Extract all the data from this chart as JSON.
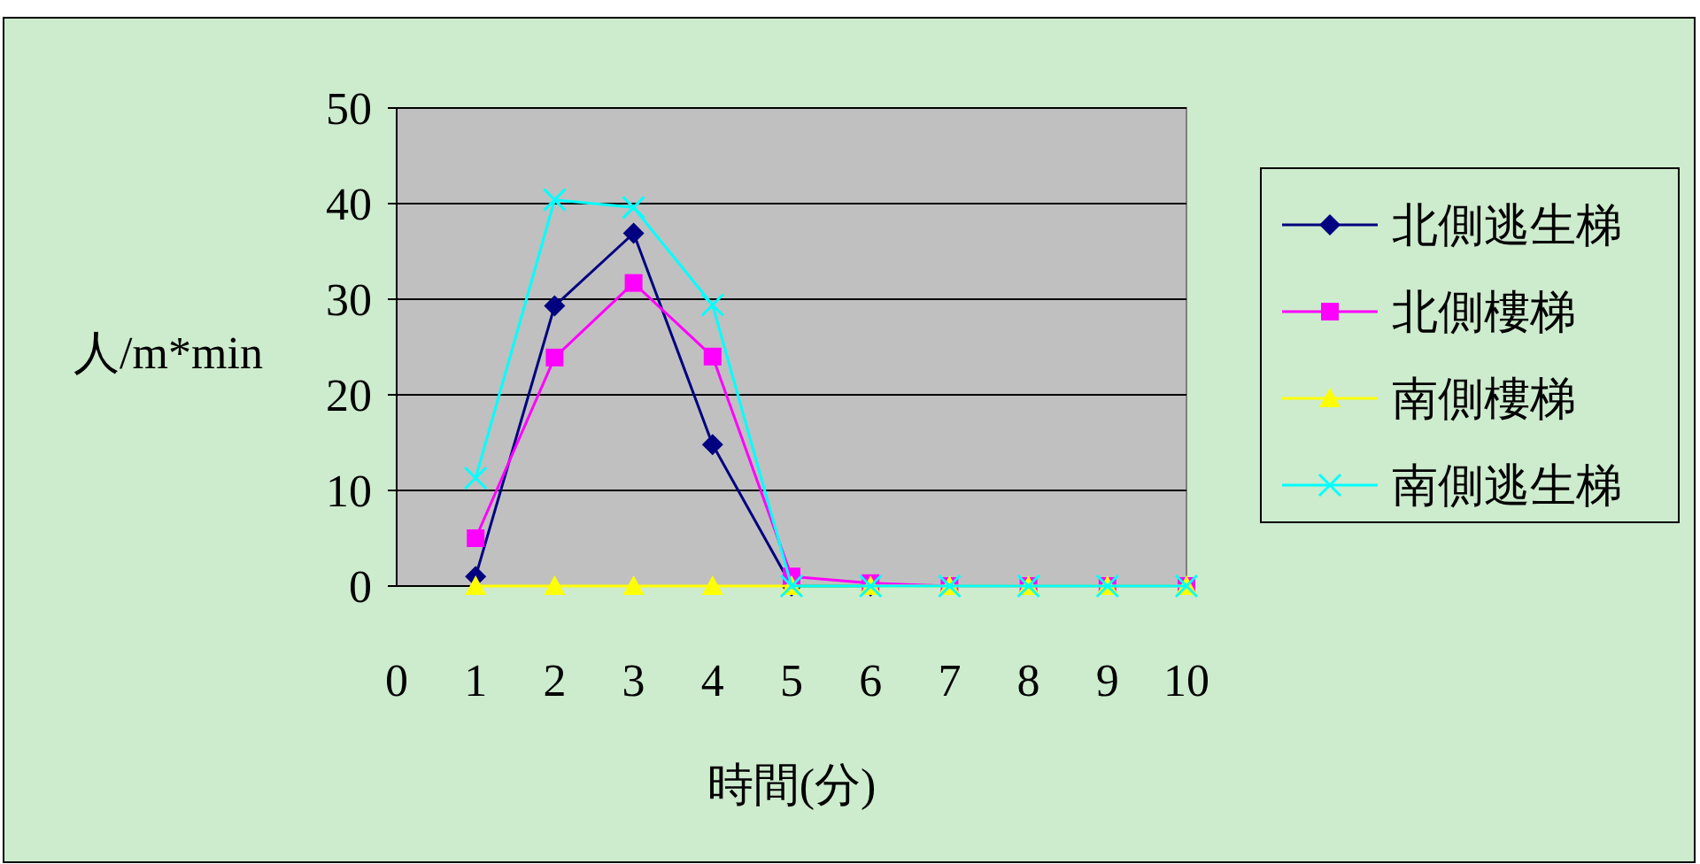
{
  "chart_data": {
    "type": "line",
    "xlabel": "時間(分)",
    "ylabel": "人/m*min",
    "x": [
      1,
      2,
      3,
      4,
      5,
      6,
      7,
      8,
      9,
      10
    ],
    "xlim": [
      0,
      10
    ],
    "xticks": [
      0,
      1,
      2,
      3,
      4,
      5,
      6,
      7,
      8,
      9,
      10
    ],
    "ylim": [
      0,
      50
    ],
    "yticks": [
      0,
      10,
      20,
      30,
      40,
      50
    ],
    "grid": "y",
    "legend": "right",
    "series": [
      {
        "name": "北側逃生梯",
        "color": "#000080",
        "marker": "diamond",
        "values": [
          1,
          29.3,
          36.9,
          14.8,
          0,
          0,
          null,
          null,
          null,
          null
        ]
      },
      {
        "name": "北側樓梯",
        "color": "#ff00ff",
        "marker": "square",
        "values": [
          5,
          23.9,
          31.7,
          24,
          1,
          0.3,
          0,
          0,
          0,
          0
        ]
      },
      {
        "name": "南側樓梯",
        "color": "#ffff00",
        "marker": "triangle",
        "values": [
          0,
          0,
          0,
          0,
          0,
          0,
          0,
          0,
          0,
          0
        ]
      },
      {
        "name": "南側逃生梯",
        "color": "#00ffff",
        "marker": "cross",
        "values": [
          11.3,
          40.4,
          39.6,
          29.4,
          0,
          0,
          0,
          0,
          0,
          0
        ]
      }
    ]
  }
}
